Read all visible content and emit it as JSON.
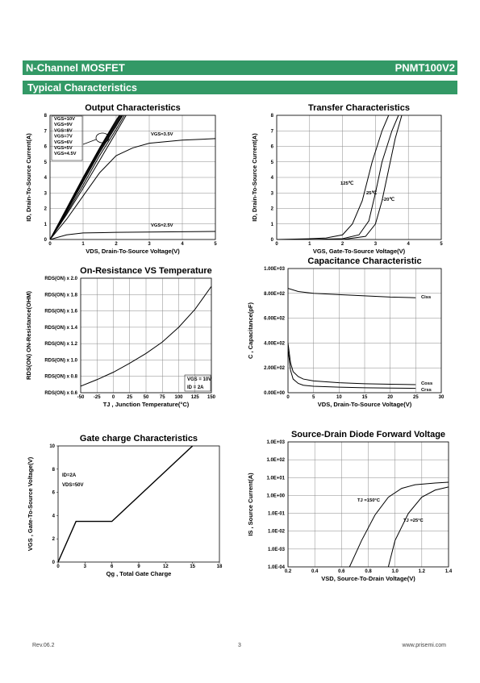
{
  "header": {
    "title": "N-Channel MOSFET",
    "part_number": "PNMT100V2",
    "section": "Typical Characteristics"
  },
  "footer": {
    "revision": "Rev.06.2",
    "page": "3",
    "website": "www.prisemi.com"
  },
  "chart_data": [
    {
      "type": "line",
      "title": "Output Characteristics",
      "x_label": "VDS, Drain-To-Source Voltage(V)",
      "y_label": "ID, Drain-To-Source Current(A)",
      "xlim": [
        0,
        5
      ],
      "ylim": [
        0,
        8
      ],
      "xticks": [
        0,
        1,
        2,
        3,
        4,
        5
      ],
      "yticks": [
        0,
        1,
        2,
        3,
        4,
        5,
        6,
        7,
        8
      ],
      "grid": true,
      "series": [
        {
          "name": "VGS=10V",
          "color": "#000000",
          "x": [
            0,
            0.5,
            1,
            1.5,
            2,
            2.1
          ],
          "values": [
            0,
            2.0,
            4.0,
            5.9,
            7.7,
            8
          ]
        },
        {
          "name": "VGS=9V",
          "color": "#000000",
          "x": [
            0,
            0.5,
            1,
            1.5,
            2,
            2.12
          ],
          "values": [
            0,
            1.95,
            3.95,
            5.85,
            7.6,
            8
          ]
        },
        {
          "name": "VGS=8V",
          "color": "#000000",
          "x": [
            0,
            0.5,
            1,
            1.5,
            2,
            2.15
          ],
          "values": [
            0,
            1.9,
            3.9,
            5.8,
            7.5,
            8
          ]
        },
        {
          "name": "VGS=7V",
          "color": "#000000",
          "x": [
            0,
            0.5,
            1,
            1.5,
            2,
            2.18
          ],
          "values": [
            0,
            1.85,
            3.8,
            5.7,
            7.4,
            8
          ]
        },
        {
          "name": "VGS=6V",
          "color": "#000000",
          "x": [
            0,
            0.5,
            1,
            1.5,
            2,
            2.2
          ],
          "values": [
            0,
            1.8,
            3.7,
            5.6,
            7.3,
            8
          ]
        },
        {
          "name": "VGS=5V",
          "color": "#000000",
          "x": [
            0,
            0.5,
            1,
            1.5,
            2,
            2.25
          ],
          "values": [
            0,
            1.7,
            3.5,
            5.4,
            7.1,
            8
          ]
        },
        {
          "name": "VGS=4.5V",
          "color": "#000000",
          "x": [
            0,
            0.5,
            1,
            1.5,
            2,
            2.3
          ],
          "values": [
            0,
            1.6,
            3.3,
            5.1,
            6.9,
            8
          ]
        },
        {
          "name": "VGS=3.5V",
          "color": "#000000",
          "x": [
            0,
            0.5,
            1,
            1.5,
            2,
            2.5,
            3,
            4,
            5
          ],
          "values": [
            0,
            1.3,
            2.8,
            4.3,
            5.4,
            5.9,
            6.2,
            6.4,
            6.5
          ]
        },
        {
          "name": "VGS=2.5V",
          "color": "#000000",
          "x": [
            0,
            0.5,
            1,
            2,
            3,
            4,
            5
          ],
          "values": [
            0,
            0.3,
            0.42,
            0.46,
            0.48,
            0.5,
            0.52
          ]
        }
      ]
    },
    {
      "type": "line",
      "title": "Transfer Characteristics",
      "x_label": "VGS, Gate-To-Source Voltage(V)",
      "y_label": "ID, Drain-To-Source Current(A)",
      "xlim": [
        0,
        5
      ],
      "ylim": [
        0,
        8
      ],
      "xticks": [
        0,
        1,
        2,
        3,
        4,
        5
      ],
      "yticks": [
        0,
        1,
        2,
        3,
        4,
        5,
        6,
        7,
        8
      ],
      "grid": true,
      "series": [
        {
          "name": "125℃",
          "color": "#000000",
          "x": [
            0,
            1,
            1.5,
            2,
            2.3,
            2.6,
            2.9,
            3.2,
            3.4
          ],
          "values": [
            0,
            0.05,
            0.1,
            0.3,
            1.0,
            2.5,
            5,
            7,
            8
          ]
        },
        {
          "name": "25℃",
          "color": "#000000",
          "x": [
            0,
            1,
            2,
            2.5,
            2.8,
            3.0,
            3.2,
            3.5,
            3.7
          ],
          "values": [
            0,
            0,
            0.05,
            0.3,
            1.2,
            3,
            5,
            7,
            8
          ]
        },
        {
          "name": "-20℃",
          "color": "#000000",
          "x": [
            0,
            1,
            2,
            2.7,
            3.0,
            3.2,
            3.4,
            3.6,
            3.8
          ],
          "values": [
            0,
            0,
            0,
            0.2,
            1,
            2.5,
            4.5,
            6.5,
            8
          ]
        }
      ]
    },
    {
      "type": "line",
      "title": "On-Resistance VS Temperature",
      "x_label": "TJ , Junction Temperature(°C)",
      "y_label": "RDS(ON) ON-Resistance(OHM)",
      "xlim": [
        -50,
        150
      ],
      "ylim": [
        0.6,
        2.0
      ],
      "xticks": [
        -50,
        -25,
        0,
        25,
        50,
        75,
        100,
        125,
        150
      ],
      "yticks": [
        {
          "value": 0.6,
          "label": "RDS(ON) x 0.6"
        },
        {
          "value": 0.8,
          "label": "RDS(ON) x 0.8"
        },
        {
          "value": 1.0,
          "label": "RDS(ON) x 1.0"
        },
        {
          "value": 1.2,
          "label": "RDS(ON) x 1.2"
        },
        {
          "value": 1.4,
          "label": "RDS(ON) x 1.4"
        },
        {
          "value": 1.6,
          "label": "RDS(ON) x 1.6"
        },
        {
          "value": 1.8,
          "label": "RDS(ON) x 1.8"
        },
        {
          "value": 2.0,
          "label": "RDS(ON) x 2.0"
        }
      ],
      "grid": true,
      "annotations": [
        "VGS = 10V",
        "ID = 2A"
      ],
      "series": [
        {
          "name": null,
          "color": "#000000",
          "x": [
            -50,
            -25,
            0,
            25,
            50,
            75,
            100,
            125,
            150
          ],
          "values": [
            0.68,
            0.76,
            0.85,
            0.96,
            1.08,
            1.22,
            1.4,
            1.62,
            1.9
          ]
        }
      ]
    },
    {
      "type": "line",
      "title": "Capacitance Characteristic",
      "x_label": "VDS, Drain-To-Source Voltage(V)",
      "y_label": "C , Capacitance(pF)",
      "xlim": [
        0,
        30
      ],
      "ylim": [
        0,
        1000
      ],
      "xticks": [
        0,
        5,
        10,
        15,
        20,
        25,
        30
      ],
      "yticks": [
        {
          "value": 0,
          "label": "0.00E+00"
        },
        {
          "value": 200,
          "label": "2.00E+02"
        },
        {
          "value": 400,
          "label": "4.00E+02"
        },
        {
          "value": 600,
          "label": "6.00E+02"
        },
        {
          "value": 800,
          "label": "8.00E+02"
        },
        {
          "value": 1000,
          "label": "1.00E+03"
        }
      ],
      "grid": true,
      "series": [
        {
          "name": "Ciss",
          "color": "#000000",
          "x": [
            0,
            2,
            5,
            10,
            15,
            20,
            25
          ],
          "values": [
            840,
            815,
            800,
            790,
            780,
            770,
            765
          ]
        },
        {
          "name": "Coss",
          "color": "#000000",
          "x": [
            0,
            0.5,
            1,
            2,
            3,
            5,
            10,
            15,
            20,
            25
          ],
          "values": [
            400,
            240,
            170,
            130,
            110,
            95,
            80,
            72,
            68,
            65
          ]
        },
        {
          "name": "Crss",
          "color": "#000000",
          "x": [
            0,
            0.5,
            1,
            2,
            3,
            5,
            10,
            15,
            20,
            25
          ],
          "values": [
            350,
            180,
            110,
            75,
            60,
            52,
            45,
            40,
            37,
            35
          ]
        }
      ]
    },
    {
      "type": "line",
      "title": "Gate charge Characteristics",
      "x_label": "Qg , Total Gate Charge",
      "y_label": "VGS , Gate-To-Source Voltage(V)",
      "xlim": [
        0,
        18
      ],
      "ylim": [
        0,
        10
      ],
      "xticks": [
        0,
        3,
        6,
        9,
        12,
        15,
        18
      ],
      "yticks": [
        0,
        2,
        4,
        6,
        8,
        10
      ],
      "grid": false,
      "annotations": [
        "ID=2A",
        "VDS=50V"
      ],
      "series": [
        {
          "name": null,
          "color": "#000000",
          "x": [
            0,
            2,
            6,
            15
          ],
          "values": [
            0,
            3.5,
            3.5,
            10
          ]
        }
      ]
    },
    {
      "type": "line",
      "title": "Source-Drain Diode Forward Voltage",
      "x_label": "VSD, Source-To-Drain Voltage(V)",
      "y_label": "IS , Source Current(A)",
      "xlim": [
        0.2,
        1.4
      ],
      "ylim": [
        0.0001,
        1000
      ],
      "log_y": true,
      "xticks": [
        0.2,
        0.4,
        0.6,
        0.8,
        {
          "value": 1,
          "label": "1.0"
        },
        1.2,
        1.4
      ],
      "yticks": [
        {
          "value": 0.0001,
          "label": "1.0E-04"
        },
        {
          "value": 0.001,
          "label": "1.0E-03"
        },
        {
          "value": 0.01,
          "label": "1.0E-02"
        },
        {
          "value": 0.1,
          "label": "1.0E-01"
        },
        {
          "value": 1,
          "label": "1.0E+00"
        },
        {
          "value": 10,
          "label": "1.0E+01"
        },
        {
          "value": 100,
          "label": "1.0E+02"
        },
        {
          "value": 1000,
          "label": "1.0E+03"
        }
      ],
      "grid": true,
      "series": [
        {
          "name": "TJ =150°C",
          "color": "#000000",
          "x": [
            0.66,
            0.75,
            0.85,
            0.95,
            1.05,
            1.15,
            1.3,
            1.4
          ],
          "values": [
            0.0001,
            0.003,
            0.08,
            0.8,
            2.5,
            4,
            5,
            5.5
          ]
        },
        {
          "name": "TJ =25°C",
          "color": "#000000",
          "x": [
            0.95,
            1.0,
            1.1,
            1.2,
            1.3,
            1.4
          ],
          "values": [
            0.0001,
            0.003,
            0.1,
            0.8,
            2,
            3
          ]
        }
      ]
    }
  ]
}
